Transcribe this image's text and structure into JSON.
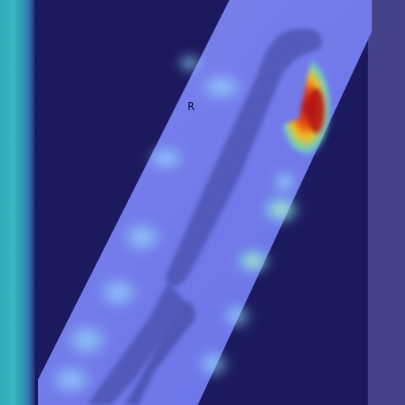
{
  "image": {
    "description_free": true,
    "marker_text": "R",
    "colors": {
      "background": "#1c1a5e",
      "left_strip": "#2fa9b6",
      "right_strip": "#45418a",
      "film": "#7f87f0",
      "bone": "#3a3f8c",
      "hotspot_core": "#c0161d",
      "hotspot_mid": "#f0a020",
      "hotspot_edge": "#66e0a0"
    }
  }
}
